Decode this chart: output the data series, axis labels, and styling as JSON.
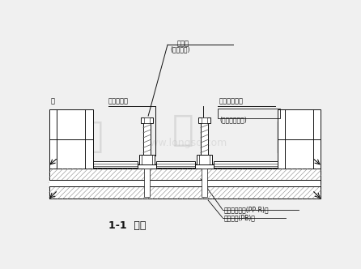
{
  "bg_color": "#f0f0f0",
  "line_color": "#111111",
  "title": "1-1  剪面",
  "annotations": {
    "top_label1": "管件帽",
    "top_label1_sub": "(内不造线)",
    "left_label1": "墙",
    "left_label2": "内螺纹接头",
    "right_label1": "管形内丝三通",
    "right_label1_sub": "(当地市场购入)",
    "bottom_label1": "无返差酒精管(PP-R)管",
    "bottom_label2": "娪层枟板(PB)板"
  },
  "fig_width": 4.46,
  "fig_height": 3.32,
  "dpi": 100
}
